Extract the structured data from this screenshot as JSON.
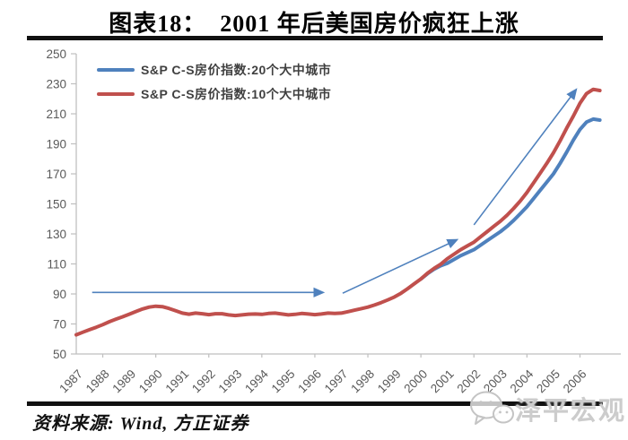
{
  "header": {
    "title": "图表18：  2001 年后美国房价疯狂上涨"
  },
  "footer": {
    "source": "资料来源: Wind, 方正证券",
    "watermark": "泽平宏观",
    "watermark_icon": "wechat-icon"
  },
  "chart_data": {
    "type": "line",
    "title": "2001 年后美国房价疯狂上涨",
    "xlabel": "",
    "ylabel": "",
    "xlim": [
      1987,
      2007
    ],
    "ylim": [
      50,
      250
    ],
    "ytick_step": 20,
    "yticks": [
      250,
      230,
      210,
      190,
      170,
      150,
      130,
      110,
      90,
      70,
      50
    ],
    "xticks": [
      1987,
      1988,
      1989,
      1990,
      1991,
      1992,
      1993,
      1994,
      1995,
      1996,
      1997,
      1998,
      1999,
      2000,
      2001,
      2002,
      2003,
      2004,
      2005,
      2006
    ],
    "grid": false,
    "legend_position": "top-left",
    "colors": {
      "axis": "#bfbfbf",
      "tick_label": "#595959",
      "legend_text": "#404040",
      "annotation": "#4f81bd"
    },
    "series": [
      {
        "name": "S&P C-S房价指数:20个大中城市",
        "color": "#4f81bd",
        "x_start": 2000.0,
        "x_step": 0.25,
        "values": [
          100.0,
          103.5,
          106.5,
          108.8,
          110.5,
          113.0,
          115.5,
          117.5,
          119.5,
          122.5,
          125.5,
          128.5,
          131.5,
          135.0,
          139.0,
          143.5,
          148.0,
          153.5,
          159.0,
          164.5,
          170.0,
          177.0,
          184.5,
          192.5,
          199.5,
          204.5,
          206.5,
          205.8
        ]
      },
      {
        "name": "S&P C-S房价指数:10个大中城市",
        "color": "#c0504d",
        "x_start": 1987.0,
        "x_step": 0.25,
        "values": [
          62.8,
          64.5,
          66.2,
          67.8,
          69.5,
          71.5,
          73.2,
          74.8,
          76.5,
          78.3,
          80.0,
          81.2,
          81.8,
          81.5,
          80.3,
          78.8,
          77.2,
          76.5,
          77.2,
          76.8,
          76.2,
          76.8,
          76.8,
          76.0,
          75.6,
          76.0,
          76.5,
          76.6,
          76.4,
          77.0,
          77.2,
          76.6,
          76.0,
          76.4,
          77.0,
          76.6,
          76.2,
          76.6,
          77.2,
          77.0,
          77.2,
          78.2,
          79.2,
          80.2,
          81.2,
          82.6,
          84.2,
          86.0,
          88.0,
          90.5,
          93.5,
          96.8,
          100.0,
          103.8,
          107.0,
          109.8,
          113.5,
          116.5,
          119.5,
          122.0,
          124.5,
          128.0,
          131.5,
          135.0,
          138.5,
          142.5,
          147.0,
          152.0,
          157.5,
          164.0,
          170.5,
          177.0,
          184.0,
          192.0,
          200.5,
          208.5,
          217.0,
          223.5,
          226.3,
          225.5
        ]
      }
    ],
    "annotations": [
      {
        "type": "arrow",
        "from": [
          1987.6,
          91
        ],
        "to": [
          1996.3,
          91
        ]
      },
      {
        "type": "arrow",
        "from": [
          1997.05,
          90.5
        ],
        "to": [
          2001.35,
          126
        ]
      },
      {
        "type": "arrow",
        "from": [
          2002.0,
          136
        ],
        "to": [
          2005.85,
          226
        ]
      }
    ]
  }
}
